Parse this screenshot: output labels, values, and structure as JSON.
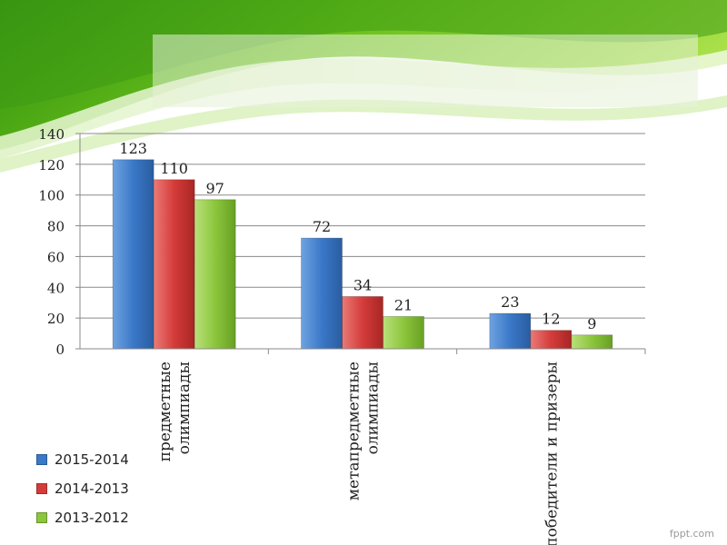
{
  "chart_data": {
    "type": "bar",
    "categories": [
      "предметные олимпиады",
      "метапредметные олимпиады",
      "победители и призеры"
    ],
    "category_lines": [
      [
        "предметные",
        "олимпиады"
      ],
      [
        "метапредметные",
        "олимпиады"
      ],
      [
        "победители и призеры"
      ]
    ],
    "series": [
      {
        "name": "2015-2014",
        "values": [
          123,
          72,
          23
        ],
        "color": "#3a78c8"
      },
      {
        "name": "2014-2013",
        "values": [
          110,
          34,
          12
        ],
        "color": "#d43c3a"
      },
      {
        "name": "2013-2012",
        "values": [
          97,
          21,
          9
        ],
        "color": "#8cc63c"
      }
    ],
    "yticks": [
      "0",
      "20",
      "40",
      "60",
      "80",
      "100",
      "120",
      "140"
    ],
    "ylim": [
      0,
      140
    ],
    "grid": true,
    "legend_position": "bottom-left"
  },
  "watermark": "fppt.com"
}
